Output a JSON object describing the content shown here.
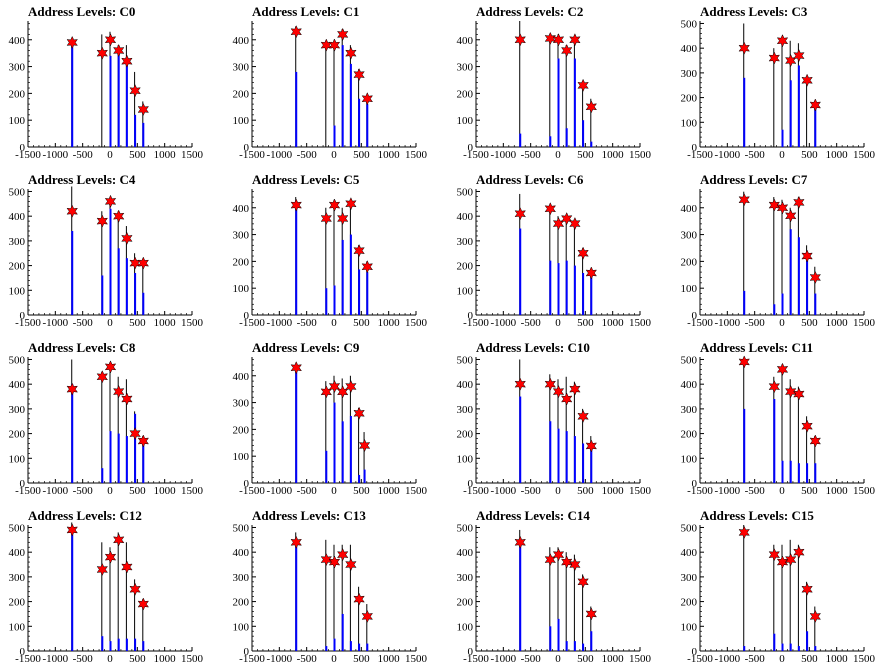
{
  "colors": {
    "blue": "#0000ff",
    "black": "#000000",
    "star": "#ff0000"
  },
  "chart_data": [
    {
      "type": "bar",
      "title": "Address Levels: C0",
      "ylim": [
        0,
        470
      ],
      "yticks": [
        0,
        100,
        200,
        300,
        400
      ],
      "xlim": [
        -1500,
        1500
      ],
      "xticks": [
        -1500,
        -1000,
        -500,
        0,
        500,
        1000,
        1500
      ],
      "x": [
        -700,
        -150,
        0,
        150,
        300,
        450,
        600
      ],
      "blue": [
        400,
        0,
        340,
        360,
        320,
        120,
        90
      ],
      "black": [
        400,
        420,
        430,
        380,
        380,
        280,
        170
      ],
      "stars": [
        390,
        350,
        400,
        360,
        320,
        210,
        140
      ]
    },
    {
      "type": "bar",
      "title": "Address Levels: C1",
      "ylim": [
        0,
        470
      ],
      "yticks": [
        0,
        100,
        200,
        300,
        400
      ],
      "xlim": [
        -1500,
        1500
      ],
      "xticks": [
        -1500,
        -1000,
        -500,
        0,
        500,
        1000,
        1500
      ],
      "x": [
        -700,
        -150,
        0,
        150,
        300,
        450,
        600
      ],
      "blue": [
        280,
        0,
        80,
        380,
        310,
        180,
        160
      ],
      "black": [
        450,
        390,
        400,
        440,
        380,
        290,
        190
      ],
      "stars": [
        430,
        380,
        380,
        420,
        350,
        270,
        180
      ]
    },
    {
      "type": "bar",
      "title": "Address Levels: C2",
      "ylim": [
        0,
        470
      ],
      "yticks": [
        0,
        100,
        200,
        300,
        400
      ],
      "xlim": [
        -1500,
        1500
      ],
      "xticks": [
        -1500,
        -1000,
        -500,
        0,
        500,
        1000,
        1500
      ],
      "x": [
        -700,
        -150,
        0,
        150,
        300,
        450,
        600
      ],
      "blue": [
        50,
        40,
        330,
        70,
        330,
        100,
        20
      ],
      "black": [
        470,
        420,
        420,
        380,
        410,
        240,
        180
      ],
      "stars": [
        400,
        405,
        400,
        360,
        400,
        230,
        150
      ]
    },
    {
      "type": "bar",
      "title": "Address Levels: C3",
      "ylim": [
        0,
        510
      ],
      "yticks": [
        0,
        100,
        200,
        300,
        400,
        500
      ],
      "xlim": [
        -1500,
        1500
      ],
      "xticks": [
        -1500,
        -1000,
        -500,
        0,
        500,
        1000,
        1500
      ],
      "x": [
        -700,
        -150,
        0,
        150,
        300,
        450,
        600
      ],
      "blue": [
        280,
        0,
        70,
        270,
        330,
        0,
        160
      ],
      "black": [
        500,
        400,
        450,
        430,
        420,
        280,
        180
      ],
      "stars": [
        400,
        360,
        430,
        350,
        370,
        270,
        170
      ]
    },
    {
      "type": "bar",
      "title": "Address Levels: C4",
      "ylim": [
        0,
        510
      ],
      "yticks": [
        0,
        100,
        200,
        300,
        400,
        500
      ],
      "xlim": [
        -1500,
        1500
      ],
      "xticks": [
        -1500,
        -1000,
        -500,
        0,
        500,
        1000,
        1500
      ],
      "x": [
        -700,
        -150,
        0,
        150,
        300,
        450,
        600
      ],
      "blue": [
        340,
        160,
        430,
        270,
        230,
        170,
        90
      ],
      "black": [
        520,
        420,
        470,
        420,
        360,
        250,
        210
      ],
      "stars": [
        420,
        380,
        460,
        400,
        310,
        210,
        210
      ]
    },
    {
      "type": "bar",
      "title": "Address Levels: C5",
      "ylim": [
        0,
        470
      ],
      "yticks": [
        0,
        100,
        200,
        300,
        400
      ],
      "xlim": [
        -1500,
        1500
      ],
      "xticks": [
        -1500,
        -1000,
        -500,
        0,
        500,
        1000,
        1500
      ],
      "x": [
        -700,
        -150,
        0,
        150,
        300,
        450,
        600
      ],
      "blue": [
        400,
        100,
        110,
        280,
        300,
        170,
        160
      ],
      "black": [
        440,
        400,
        430,
        400,
        420,
        260,
        200
      ],
      "stars": [
        410,
        360,
        410,
        360,
        415,
        240,
        180
      ]
    },
    {
      "type": "bar",
      "title": "Address Levels: C6",
      "ylim": [
        0,
        510
      ],
      "yticks": [
        0,
        100,
        200,
        300,
        400,
        500
      ],
      "xlim": [
        -1500,
        1500
      ],
      "xticks": [
        -1500,
        -1000,
        -500,
        0,
        500,
        1000,
        1500
      ],
      "x": [
        -700,
        -150,
        0,
        150,
        300,
        450,
        600
      ],
      "blue": [
        350,
        220,
        210,
        220,
        200,
        170,
        160
      ],
      "black": [
        490,
        440,
        400,
        400,
        380,
        270,
        180
      ],
      "stars": [
        410,
        430,
        370,
        390,
        370,
        250,
        170
      ]
    },
    {
      "type": "bar",
      "title": "Address Levels: C7",
      "ylim": [
        0,
        470
      ],
      "yticks": [
        0,
        100,
        200,
        300,
        400
      ],
      "xlim": [
        -1500,
        1500
      ],
      "xticks": [
        -1500,
        -1000,
        -500,
        0,
        500,
        1000,
        1500
      ],
      "x": [
        -700,
        -150,
        0,
        150,
        300,
        450,
        600
      ],
      "blue": [
        90,
        40,
        80,
        320,
        290,
        210,
        80
      ],
      "black": [
        460,
        440,
        430,
        400,
        440,
        260,
        180
      ],
      "stars": [
        430,
        410,
        400,
        370,
        420,
        220,
        140
      ]
    },
    {
      "type": "bar",
      "title": "Address Levels: C8",
      "ylim": [
        0,
        510
      ],
      "yticks": [
        0,
        100,
        200,
        300,
        400,
        500
      ],
      "xlim": [
        -1500,
        1500
      ],
      "xticks": [
        -1500,
        -1000,
        -500,
        0,
        500,
        1000,
        1500
      ],
      "x": [
        -700,
        -150,
        0,
        150,
        300,
        450,
        600
      ],
      "blue": [
        400,
        60,
        210,
        200,
        190,
        280,
        170
      ],
      "black": [
        500,
        450,
        490,
        430,
        420,
        290,
        190
      ],
      "stars": [
        380,
        430,
        470,
        370,
        340,
        200,
        170
      ]
    },
    {
      "type": "bar",
      "title": "Address Levels: C9",
      "ylim": [
        0,
        470
      ],
      "yticks": [
        0,
        100,
        200,
        300,
        400
      ],
      "xlim": [
        -1500,
        1500
      ],
      "xticks": [
        -1500,
        -1000,
        -500,
        0,
        500,
        1000,
        1500
      ],
      "x": [
        -700,
        -150,
        0,
        150,
        300,
        450,
        550
      ],
      "blue": [
        420,
        120,
        300,
        230,
        250,
        30,
        50
      ],
      "black": [
        440,
        380,
        400,
        390,
        400,
        280,
        190
      ],
      "stars": [
        430,
        340,
        360,
        340,
        360,
        260,
        140
      ]
    },
    {
      "type": "bar",
      "title": "Address Levels: C10",
      "ylim": [
        0,
        510
      ],
      "yticks": [
        0,
        100,
        200,
        300,
        400,
        500
      ],
      "xlim": [
        -1500,
        1500
      ],
      "xticks": [
        -1500,
        -1000,
        -500,
        0,
        500,
        1000,
        1500
      ],
      "x": [
        -700,
        -150,
        0,
        150,
        300,
        450,
        600
      ],
      "blue": [
        350,
        250,
        220,
        210,
        190,
        160,
        140
      ],
      "black": [
        500,
        440,
        420,
        430,
        410,
        300,
        190
      ],
      "stars": [
        400,
        400,
        370,
        340,
        380,
        270,
        150
      ]
    },
    {
      "type": "bar",
      "title": "Address Levels: C11",
      "ylim": [
        0,
        510
      ],
      "yticks": [
        0,
        100,
        200,
        300,
        400,
        500
      ],
      "xlim": [
        -1500,
        1500
      ],
      "xticks": [
        -1500,
        -1000,
        -500,
        0,
        500,
        1000,
        1500
      ],
      "x": [
        -700,
        -150,
        0,
        150,
        300,
        450,
        600
      ],
      "blue": [
        300,
        340,
        90,
        90,
        80,
        80,
        80
      ],
      "black": [
        500,
        430,
        480,
        420,
        390,
        270,
        190
      ],
      "stars": [
        490,
        390,
        460,
        370,
        360,
        230,
        170
      ]
    },
    {
      "type": "bar",
      "title": "Address Levels: C12",
      "ylim": [
        0,
        510
      ],
      "yticks": [
        0,
        100,
        200,
        300,
        400,
        500
      ],
      "xlim": [
        -1500,
        1500
      ],
      "xticks": [
        -1500,
        -1000,
        -500,
        0,
        500,
        1000,
        1500
      ],
      "x": [
        -700,
        -150,
        0,
        150,
        300,
        450,
        600
      ],
      "blue": [
        500,
        60,
        40,
        50,
        50,
        50,
        40
      ],
      "black": [
        520,
        440,
        420,
        480,
        440,
        290,
        210
      ],
      "stars": [
        490,
        330,
        380,
        450,
        340,
        250,
        190
      ]
    },
    {
      "type": "bar",
      "title": "Address Levels: C13",
      "ylim": [
        0,
        510
      ],
      "yticks": [
        0,
        100,
        200,
        300,
        400,
        500
      ],
      "xlim": [
        -1500,
        1500
      ],
      "xticks": [
        -1500,
        -1000,
        -500,
        0,
        500,
        1000,
        1500
      ],
      "x": [
        -700,
        -150,
        0,
        150,
        300,
        450,
        600
      ],
      "blue": [
        440,
        20,
        50,
        150,
        40,
        30,
        30
      ],
      "black": [
        480,
        450,
        430,
        430,
        430,
        260,
        190
      ],
      "stars": [
        440,
        370,
        360,
        390,
        350,
        210,
        140
      ]
    },
    {
      "type": "bar",
      "title": "Address Levels: C14",
      "ylim": [
        0,
        510
      ],
      "yticks": [
        0,
        100,
        200,
        300,
        400,
        500
      ],
      "xlim": [
        -1500,
        1500
      ],
      "xticks": [
        -1500,
        -1000,
        -500,
        0,
        500,
        1000,
        1500
      ],
      "x": [
        -700,
        -150,
        0,
        150,
        300,
        450,
        600
      ],
      "blue": [
        430,
        100,
        130,
        40,
        40,
        30,
        80
      ],
      "black": [
        490,
        420,
        420,
        400,
        390,
        310,
        180
      ],
      "stars": [
        440,
        370,
        390,
        360,
        350,
        280,
        150
      ]
    },
    {
      "type": "bar",
      "title": "Address Levels: C15",
      "ylim": [
        0,
        510
      ],
      "yticks": [
        0,
        100,
        200,
        300,
        400,
        500
      ],
      "xlim": [
        -1500,
        1500
      ],
      "xticks": [
        -1500,
        -1000,
        -500,
        0,
        500,
        1000,
        1500
      ],
      "x": [
        -700,
        -150,
        0,
        150,
        300,
        450,
        600
      ],
      "blue": [
        20,
        70,
        30,
        30,
        20,
        80,
        20
      ],
      "black": [
        510,
        430,
        430,
        450,
        430,
        280,
        180
      ],
      "stars": [
        480,
        390,
        360,
        370,
        400,
        250,
        140
      ]
    }
  ]
}
